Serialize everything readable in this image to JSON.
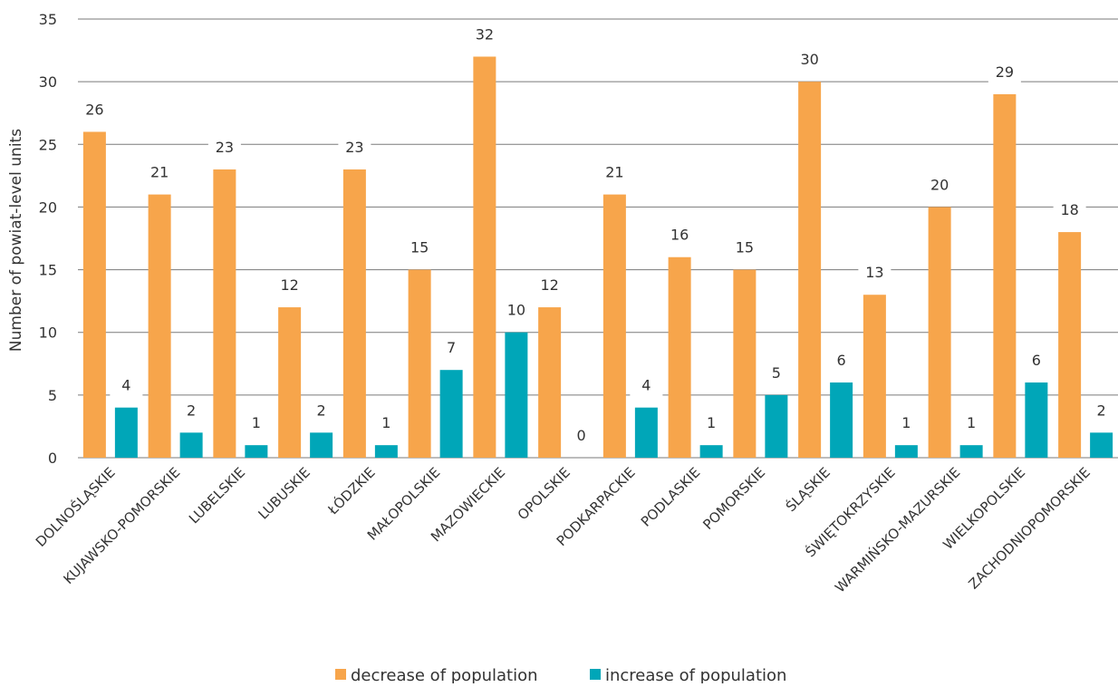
{
  "chart_data": {
    "type": "bar",
    "ylabel": "Number of powiat-level units",
    "ylim": [
      0,
      35
    ],
    "yticks": [
      0,
      5,
      10,
      15,
      20,
      25,
      30,
      35
    ],
    "grid": true,
    "legend_position": "bottom",
    "categories": [
      "DOLNOŚLĄSKIE",
      "KUJAWSKO-POMORSKIE",
      "LUBELSKIE",
      "LUBUSKIE",
      "ŁÓDZKIE",
      "MAŁOPOLSKIE",
      "MAZOWIECKIE",
      "OPOLSKIE",
      "PODKARPACKIE",
      "PODLASKIE",
      "POMORSKIE",
      "ŚLĄSKIE",
      "ŚWIĘTOKRZYSKIE",
      "WARMIŃSKO-MAZURSKIE",
      "WIELKOPOLSKIE",
      "ZACHODNIOPOMORSKIE"
    ],
    "series": [
      {
        "name": "decrease of population",
        "color": "#F7A54B",
        "values": [
          26,
          21,
          23,
          12,
          23,
          15,
          32,
          12,
          21,
          16,
          15,
          30,
          13,
          20,
          29,
          18
        ]
      },
      {
        "name": "increase of population",
        "color": "#00A6B8",
        "values": [
          4,
          2,
          1,
          2,
          1,
          7,
          10,
          0,
          4,
          1,
          5,
          6,
          1,
          1,
          6,
          2
        ]
      }
    ]
  }
}
